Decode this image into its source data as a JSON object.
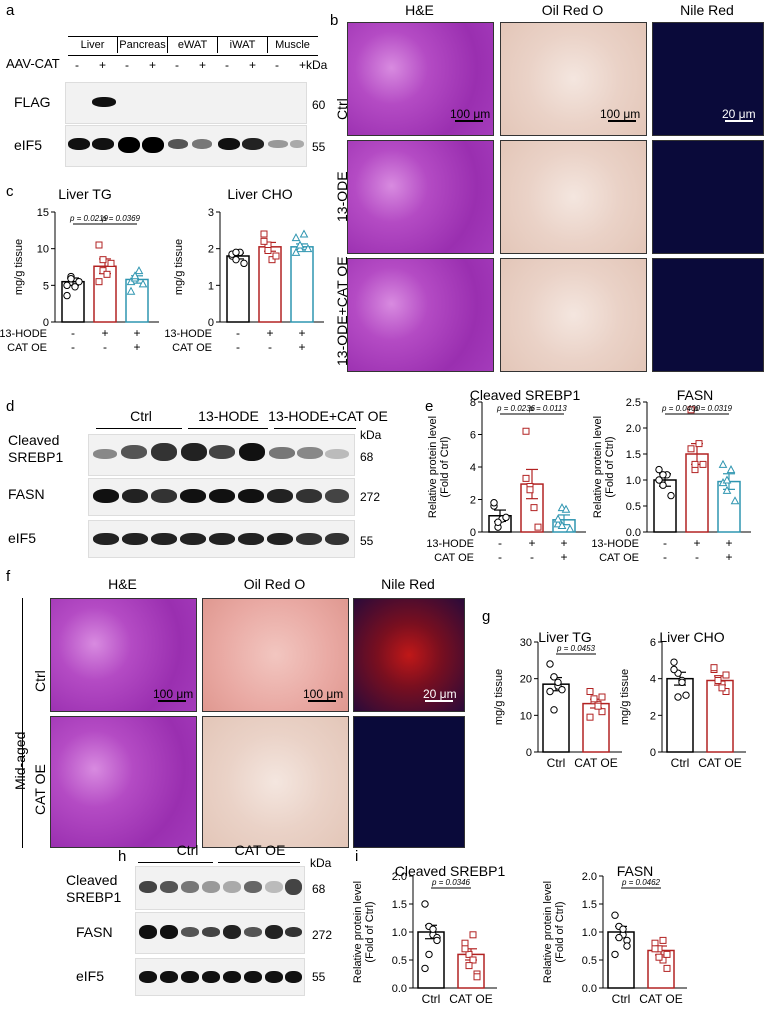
{
  "panel_labels": {
    "a": "a",
    "b": "b",
    "c": "c",
    "d": "d",
    "e": "e",
    "f": "f",
    "g": "g",
    "h": "h",
    "i": "i"
  },
  "panel_a": {
    "tissues": [
      "Liver",
      "Pancreas",
      "eWAT",
      "iWAT",
      "Muscle"
    ],
    "row_label": "AAV-CAT",
    "signs": [
      "-",
      "+",
      "-",
      "+",
      "-",
      "+",
      "-",
      "+",
      "-",
      "+"
    ],
    "kda": "kDa",
    "blots": [
      {
        "name": "FLAG",
        "mw": "60"
      },
      {
        "name": "eIF5",
        "mw": "55"
      }
    ]
  },
  "panel_b": {
    "columns": [
      "H&E",
      "Oil Red O",
      "Nile Red"
    ],
    "rows": [
      "Ctrl",
      "13-ODE",
      "13-ODE+CAT OE"
    ],
    "scale_100": "100 μm",
    "scale_100b": "100 μm",
    "scale_20": "20 μm"
  },
  "panel_d": {
    "groups": [
      "Ctrl",
      "13-HODE",
      "13-HODE+CAT OE"
    ],
    "kda": "kDa",
    "blots": [
      {
        "name": "Cleaved SREBP1",
        "name1": "Cleaved",
        "name2": "SREBP1",
        "mw": "68"
      },
      {
        "name": "FASN",
        "mw": "272"
      },
      {
        "name": "eIF5",
        "mw": "55"
      }
    ]
  },
  "panel_f": {
    "columns": [
      "H&E",
      "Oil Red O",
      "Nile Red"
    ],
    "rows": [
      "Ctrl",
      "CAT OE"
    ],
    "side_label": "Mid-aged",
    "scale_100": "100 μm",
    "scale_100b": "100 μm",
    "scale_20": "20 μm"
  },
  "panel_h": {
    "groups": [
      "Ctrl",
      "CAT OE"
    ],
    "kda": "kDa",
    "blots": [
      {
        "name1": "Cleaved",
        "name2": "SREBP1",
        "mw": "68"
      },
      {
        "name": "FASN",
        "mw": "272"
      },
      {
        "name": "eIF5",
        "mw": "55"
      }
    ]
  },
  "colors": {
    "ctrl": "#000000",
    "treat": "#b22222",
    "catoe": "#2e95b0"
  },
  "chart_data": [
    {
      "id": "c_tg",
      "type": "bar",
      "title": "Liver TG",
      "ylabel": "mg/g tissue",
      "ylim": [
        0,
        15
      ],
      "yticks": [
        0,
        5,
        10,
        15
      ],
      "factor_rows": [
        {
          "label": "13-HODE",
          "signs": [
            "-",
            "+",
            "+"
          ]
        },
        {
          "label": "CAT OE",
          "signs": [
            "-",
            "-",
            "+"
          ]
        }
      ],
      "bars": [
        5.5,
        7.6,
        5.8
      ],
      "err": [
        0.5,
        1.0,
        0.5
      ],
      "points": [
        [
          5.0,
          6.2,
          4.8,
          5.5,
          3.6,
          5.9
        ],
        [
          10.5,
          7.0,
          6.5,
          8.0,
          5.5,
          8.5
        ],
        [
          5.5,
          6.0,
          7.0,
          5.2,
          4.2,
          6.3
        ]
      ],
      "pvals": [
        {
          "from": 0,
          "to": 1,
          "text": "p = 0.0219"
        },
        {
          "from": 1,
          "to": 2,
          "text": "p = 0.0369"
        }
      ]
    },
    {
      "id": "c_cho",
      "type": "bar",
      "title": "Liver CHO",
      "ylabel": "mg/g tissue",
      "ylim": [
        0,
        3
      ],
      "yticks": [
        0,
        1,
        2,
        3
      ],
      "factor_rows": [
        {
          "label": "13-HODE",
          "signs": [
            "-",
            "+",
            "+"
          ]
        },
        {
          "label": "CAT OE",
          "signs": [
            "-",
            "-",
            "+"
          ]
        }
      ],
      "bars": [
        1.8,
        2.05,
        2.05
      ],
      "err": [
        0.08,
        0.12,
        0.08
      ],
      "points": [
        [
          1.8,
          1.7,
          1.9,
          1.6,
          1.85,
          1.9
        ],
        [
          2.4,
          2.1,
          1.7,
          1.8,
          2.2,
          1.95
        ],
        [
          2.3,
          2.0,
          2.4,
          2.0,
          1.9,
          2.1
        ]
      ],
      "pvals": []
    },
    {
      "id": "e_srebp",
      "type": "bar",
      "title": "Cleaved SREBP1",
      "ylabel": "Relative protein level (Fold of Ctrl)",
      "ylim": [
        0,
        8
      ],
      "yticks": [
        0,
        2,
        4,
        6,
        8
      ],
      "factor_rows": [
        {
          "label": "13-HODE",
          "signs": [
            "-",
            "+",
            "+"
          ]
        },
        {
          "label": "CAT OE",
          "signs": [
            "-",
            "-",
            "+"
          ]
        }
      ],
      "bars": [
        1.0,
        2.95,
        0.75
      ],
      "err": [
        0.35,
        0.9,
        0.3
      ],
      "points": [
        [
          1.6,
          0.3,
          0.8,
          0.9,
          1.8,
          0.6
        ],
        [
          6.2,
          2.8,
          1.5,
          0.3,
          3.3,
          2.6
        ],
        [
          0.5,
          1.5,
          1.4,
          0.2,
          0.8,
          0.4
        ]
      ],
      "pvals": [
        {
          "from": 0,
          "to": 1,
          "text": "p = 0.0236"
        },
        {
          "from": 1,
          "to": 2,
          "text": "p = 0.0113"
        }
      ]
    },
    {
      "id": "e_fasn",
      "type": "bar",
      "title": "FASN",
      "ylabel": "Relative protein level (Fold of Ctrl)",
      "ylim": [
        0,
        2.5
      ],
      "yticks": [
        0,
        0.5,
        1.0,
        1.5,
        2.0,
        2.5
      ],
      "factor_rows": [
        {
          "label": "13-HODE",
          "signs": [
            "-",
            "+",
            "+"
          ]
        },
        {
          "label": "CAT OE",
          "signs": [
            "-",
            "-",
            "+"
          ]
        }
      ],
      "bars": [
        1.0,
        1.5,
        0.97
      ],
      "err": [
        0.12,
        0.2,
        0.15
      ],
      "points": [
        [
          1.2,
          0.9,
          1.1,
          0.7,
          1.0,
          1.1
        ],
        [
          2.35,
          1.2,
          1.7,
          1.3,
          1.6,
          1.3
        ],
        [
          1.3,
          0.8,
          1.2,
          0.6,
          0.95,
          1.0
        ]
      ],
      "pvals": [
        {
          "from": 0,
          "to": 1,
          "text": "p = 0.0400"
        },
        {
          "from": 1,
          "to": 2,
          "text": "p = 0.0319"
        }
      ]
    },
    {
      "id": "g_tg",
      "type": "bar",
      "title": "Liver TG",
      "ylabel": "mg/g tissue",
      "ylim": [
        0,
        30
      ],
      "yticks": [
        0,
        10,
        20,
        30
      ],
      "categories": [
        "Ctrl",
        "CAT OE"
      ],
      "bars": [
        18.5,
        13.2
      ],
      "err": [
        1.8,
        1.2
      ],
      "points": [
        [
          24.0,
          20.5,
          18.0,
          17.0,
          16.5,
          11.5,
          19.0
        ],
        [
          16.5,
          14.0,
          13.0,
          11.0,
          9.5,
          14.5,
          12.5,
          15.0
        ]
      ],
      "pvals": [
        {
          "from": 0,
          "to": 1,
          "text": "p = 0.0453"
        }
      ]
    },
    {
      "id": "g_cho",
      "type": "bar",
      "title": "Liver CHO",
      "ylabel": "mg/g tissue",
      "ylim": [
        0,
        6
      ],
      "yticks": [
        0,
        2,
        4,
        6
      ],
      "categories": [
        "Ctrl",
        "CAT OE"
      ],
      "bars": [
        4.0,
        3.9
      ],
      "err": [
        0.35,
        0.25
      ],
      "points": [
        [
          4.9,
          4.3,
          3.9,
          3.1,
          4.5,
          3.0,
          3.8
        ],
        [
          4.5,
          4.0,
          3.7,
          3.3,
          4.6,
          3.9,
          3.5,
          4.2
        ]
      ],
      "pvals": []
    },
    {
      "id": "i_srebp",
      "type": "bar",
      "title": "Cleaved SREBP1",
      "ylabel": "Relative protein level (Fold of Ctrl)",
      "ylim": [
        0,
        2.0
      ],
      "yticks": [
        0,
        0.5,
        1.0,
        1.5,
        2.0
      ],
      "categories": [
        "Ctrl",
        "CAT OE"
      ],
      "bars": [
        1.0,
        0.6
      ],
      "err": [
        0.12,
        0.1
      ],
      "points": [
        [
          1.5,
          1.1,
          0.95,
          0.9,
          0.35,
          0.6,
          1.05,
          0.85
        ],
        [
          0.8,
          0.6,
          0.5,
          0.25,
          0.7,
          0.4,
          0.95,
          0.2
        ]
      ],
      "pvals": [
        {
          "from": 0,
          "to": 1,
          "text": "p = 0.0346"
        }
      ]
    },
    {
      "id": "i_fasn",
      "type": "bar",
      "title": "FASN",
      "ylabel": "Relative protein level (Fold of Ctrl)",
      "ylim": [
        0,
        2.0
      ],
      "yticks": [
        0,
        0.5,
        1.0,
        1.5,
        2.0
      ],
      "categories": [
        "Ctrl",
        "CAT OE"
      ],
      "bars": [
        1.0,
        0.67
      ],
      "err": [
        0.1,
        0.08
      ],
      "points": [
        [
          1.3,
          1.1,
          0.95,
          0.85,
          0.6,
          0.9,
          1.05,
          0.75
        ],
        [
          0.8,
          0.7,
          0.5,
          0.35,
          0.7,
          0.55,
          0.85,
          0.6
        ]
      ],
      "pvals": [
        {
          "from": 0,
          "to": 1,
          "text": "p = 0.0462"
        }
      ]
    }
  ]
}
